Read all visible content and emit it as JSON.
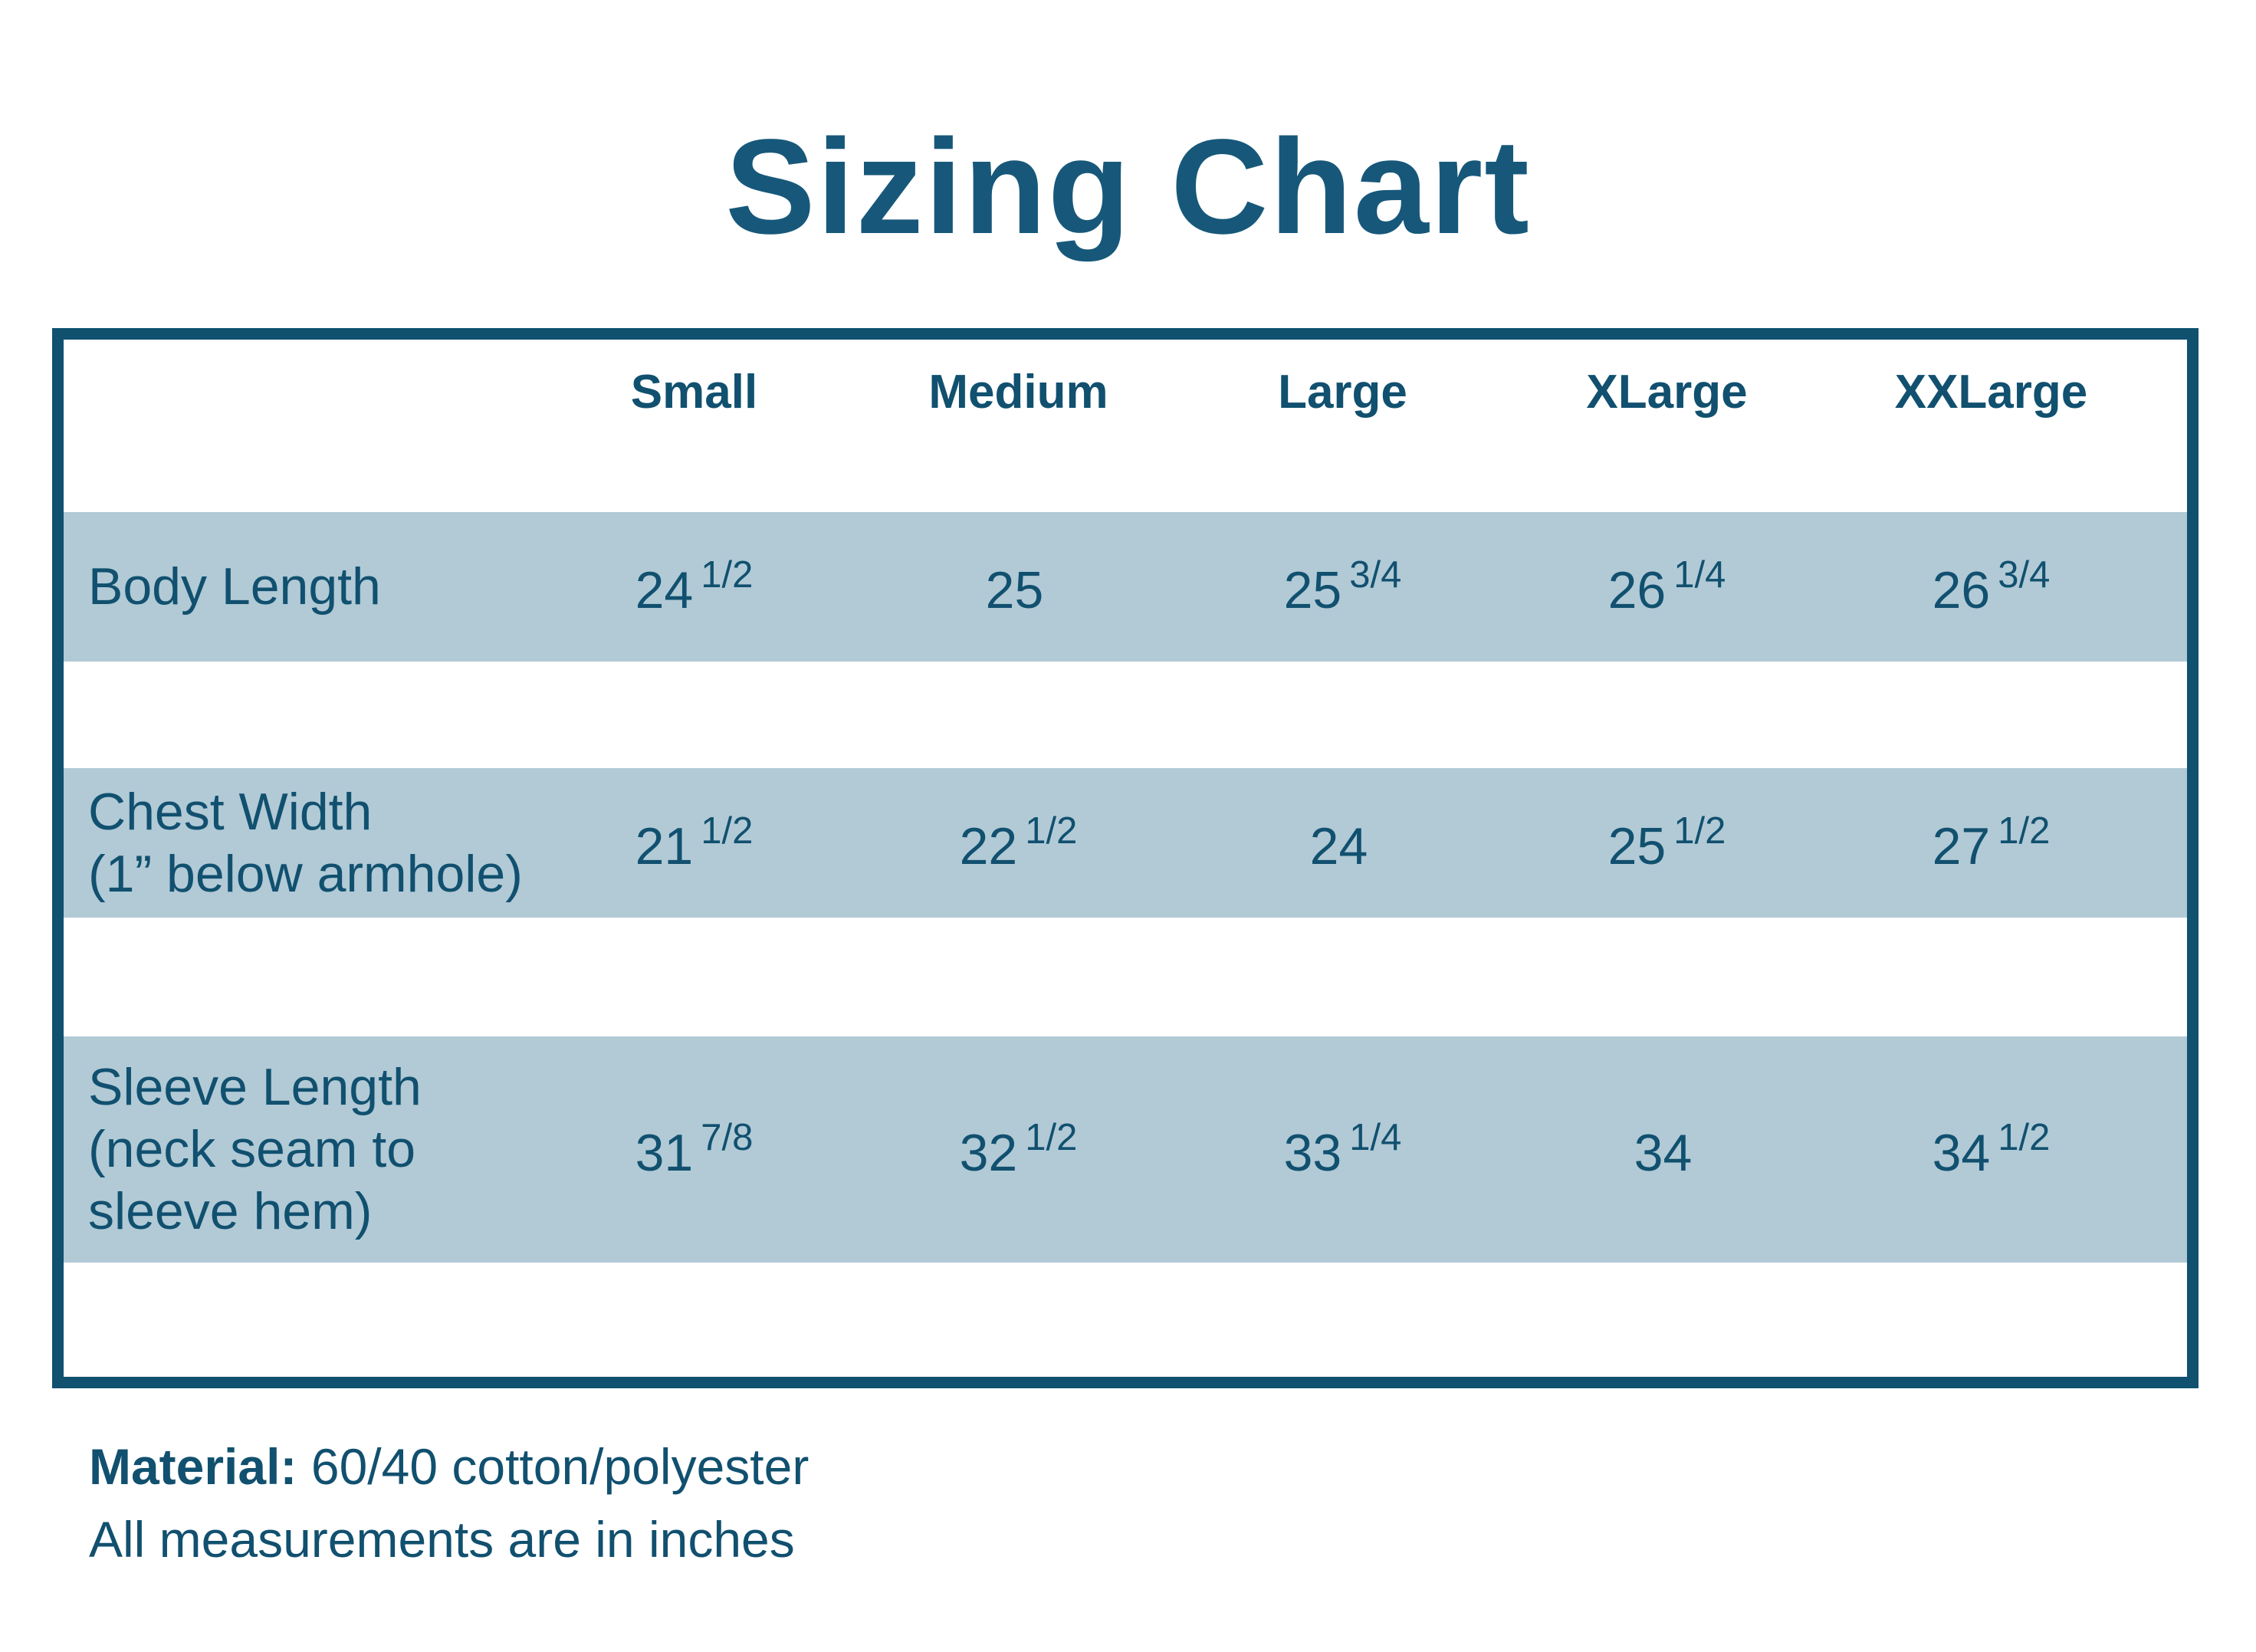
{
  "page": {
    "title": "Sizing Chart",
    "background_color": "#ffffff",
    "accent_text_color": "#11506f",
    "title_color": "#17587a",
    "border_color": "#0f516f",
    "band_color": "#b1cad6"
  },
  "table": {
    "size_headers": [
      "Small",
      "Medium",
      "Large",
      "XLarge",
      "XXLarge"
    ],
    "rows": [
      {
        "label_lines": [
          "Body Length"
        ],
        "values": [
          {
            "whole": "24",
            "frac": "1/2"
          },
          {
            "whole": "25",
            "frac": ""
          },
          {
            "whole": "25",
            "frac": "3/4"
          },
          {
            "whole": "26",
            "frac": "1/4"
          },
          {
            "whole": "26",
            "frac": "3/4"
          }
        ]
      },
      {
        "label_lines": [
          "Chest Width",
          "(1” below armhole)"
        ],
        "values": [
          {
            "whole": "21",
            "frac": "1/2"
          },
          {
            "whole": "22",
            "frac": "1/2"
          },
          {
            "whole": "24",
            "frac": ""
          },
          {
            "whole": "25",
            "frac": "1/2"
          },
          {
            "whole": "27",
            "frac": "1/2"
          }
        ]
      },
      {
        "label_lines": [
          "Sleeve Length",
          "(neck seam to",
          "sleeve hem)"
        ],
        "values": [
          {
            "whole": "31",
            "frac": "7/8"
          },
          {
            "whole": "32",
            "frac": "1/2"
          },
          {
            "whole": "33",
            "frac": "1/4"
          },
          {
            "whole": "34",
            "frac": ""
          },
          {
            "whole": "34",
            "frac": "1/2"
          }
        ]
      }
    ]
  },
  "footer": {
    "material_label": "Material:",
    "material_value": "60/40 cotton/polyester",
    "note": "All measurements are in inches"
  },
  "chart_data": {
    "type": "table",
    "title": "Sizing Chart",
    "columns": [
      "",
      "Small",
      "Medium",
      "Large",
      "XLarge",
      "XXLarge"
    ],
    "rows": [
      {
        "label": "Body Length",
        "values": [
          "24 1/2",
          "25",
          "25 3/4",
          "26 1/4",
          "26 3/4"
        ]
      },
      {
        "label": "Chest Width (1” below armhole)",
        "values": [
          "21 1/2",
          "22 1/2",
          "24",
          "25 1/2",
          "27 1/2"
        ]
      },
      {
        "label": "Sleeve Length (neck seam to sleeve hem)",
        "values": [
          "31 7/8",
          "32 1/2",
          "33 1/4",
          "34",
          "34 1/2"
        ]
      }
    ],
    "values_numeric": [
      [
        24.5,
        25,
        25.75,
        26.25,
        26.75
      ],
      [
        21.5,
        22.5,
        24,
        25.5,
        27.5
      ],
      [
        31.875,
        32.5,
        33.25,
        34,
        34.5
      ]
    ],
    "units": "inches",
    "notes": [
      "Material: 60/40 cotton/polyester",
      "All measurements are in inches"
    ]
  }
}
